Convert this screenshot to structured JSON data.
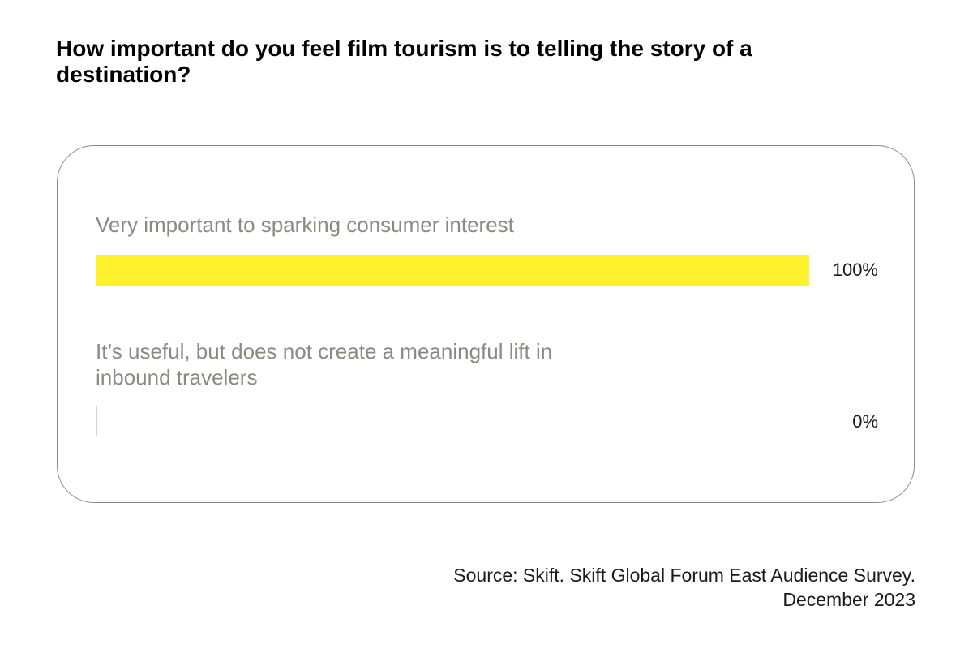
{
  "chart_data": {
    "type": "bar",
    "orientation": "horizontal",
    "title": "How important do you feel film tourism is to telling the story of a destination?",
    "categories": [
      "Very important to sparking consumer interest",
      "It’s useful, but does not create a meaningful lift in inbound travelers"
    ],
    "values": [
      100,
      0
    ],
    "value_labels": [
      "100%",
      "0%"
    ],
    "xlim": [
      0,
      100
    ],
    "unit": "%",
    "bar_color": "#fff22d",
    "source_line1": "Source: Skift. Skift Global Forum East Audience Survey.",
    "source_line2": "December 2023"
  }
}
